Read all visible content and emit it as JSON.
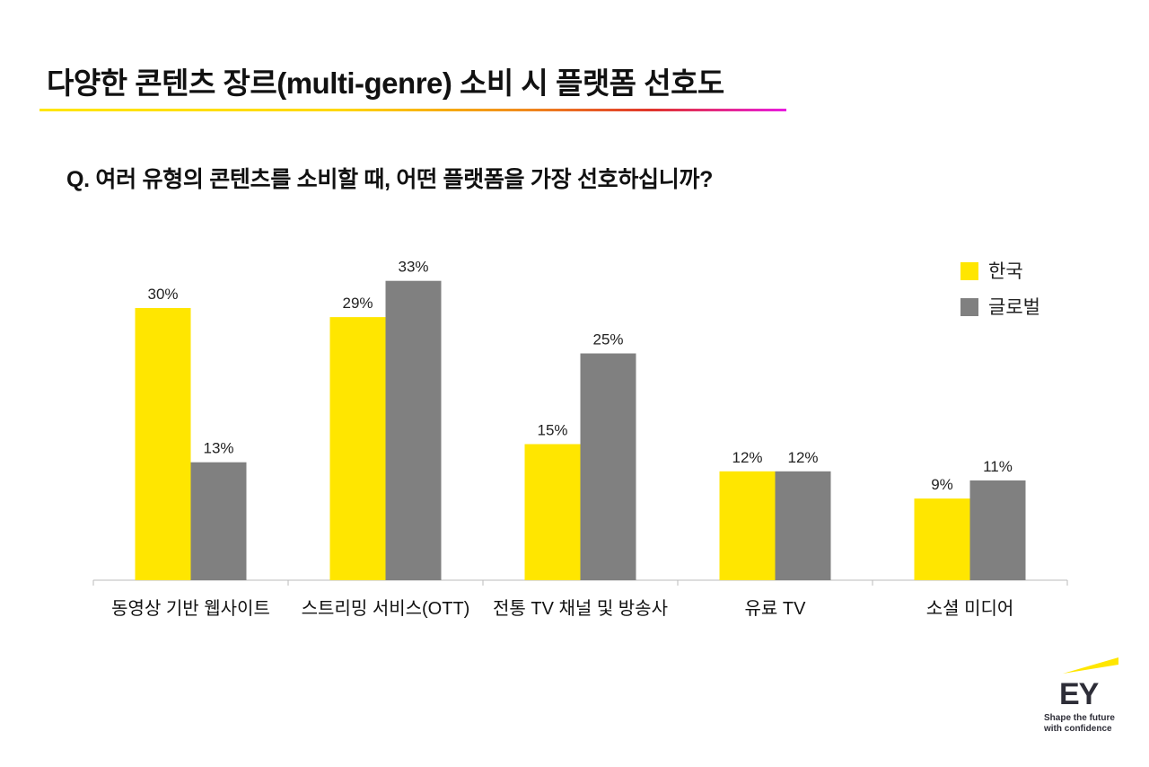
{
  "title": "다양한 콘텐츠 장르(multi-genre) 소비 시 플랫폼 선호도",
  "question": "Q. 여러 유형의 콘텐츠를 소비할 때, 어떤 플랫폼을 가장 선호하십니까?",
  "logo": {
    "mark": "EY",
    "tagline_1": "Shape the future",
    "tagline_2": "with confidence"
  },
  "chart_data": {
    "type": "bar",
    "categories": [
      "동영상 기반 웹사이트",
      "스트리밍 서비스(OTT)",
      "전통 TV 채널 및 방송사",
      "유료 TV",
      "소셜 미디어"
    ],
    "series": [
      {
        "name": "한국",
        "values": [
          30,
          29,
          15,
          12,
          9
        ],
        "color": "#ffe600"
      },
      {
        "name": "글로벌",
        "values": [
          13,
          33,
          25,
          12,
          11
        ],
        "color": "#808080"
      }
    ],
    "value_suffix": "%",
    "ylim": [
      0,
      35
    ],
    "grid": false,
    "legend": "top-right"
  }
}
